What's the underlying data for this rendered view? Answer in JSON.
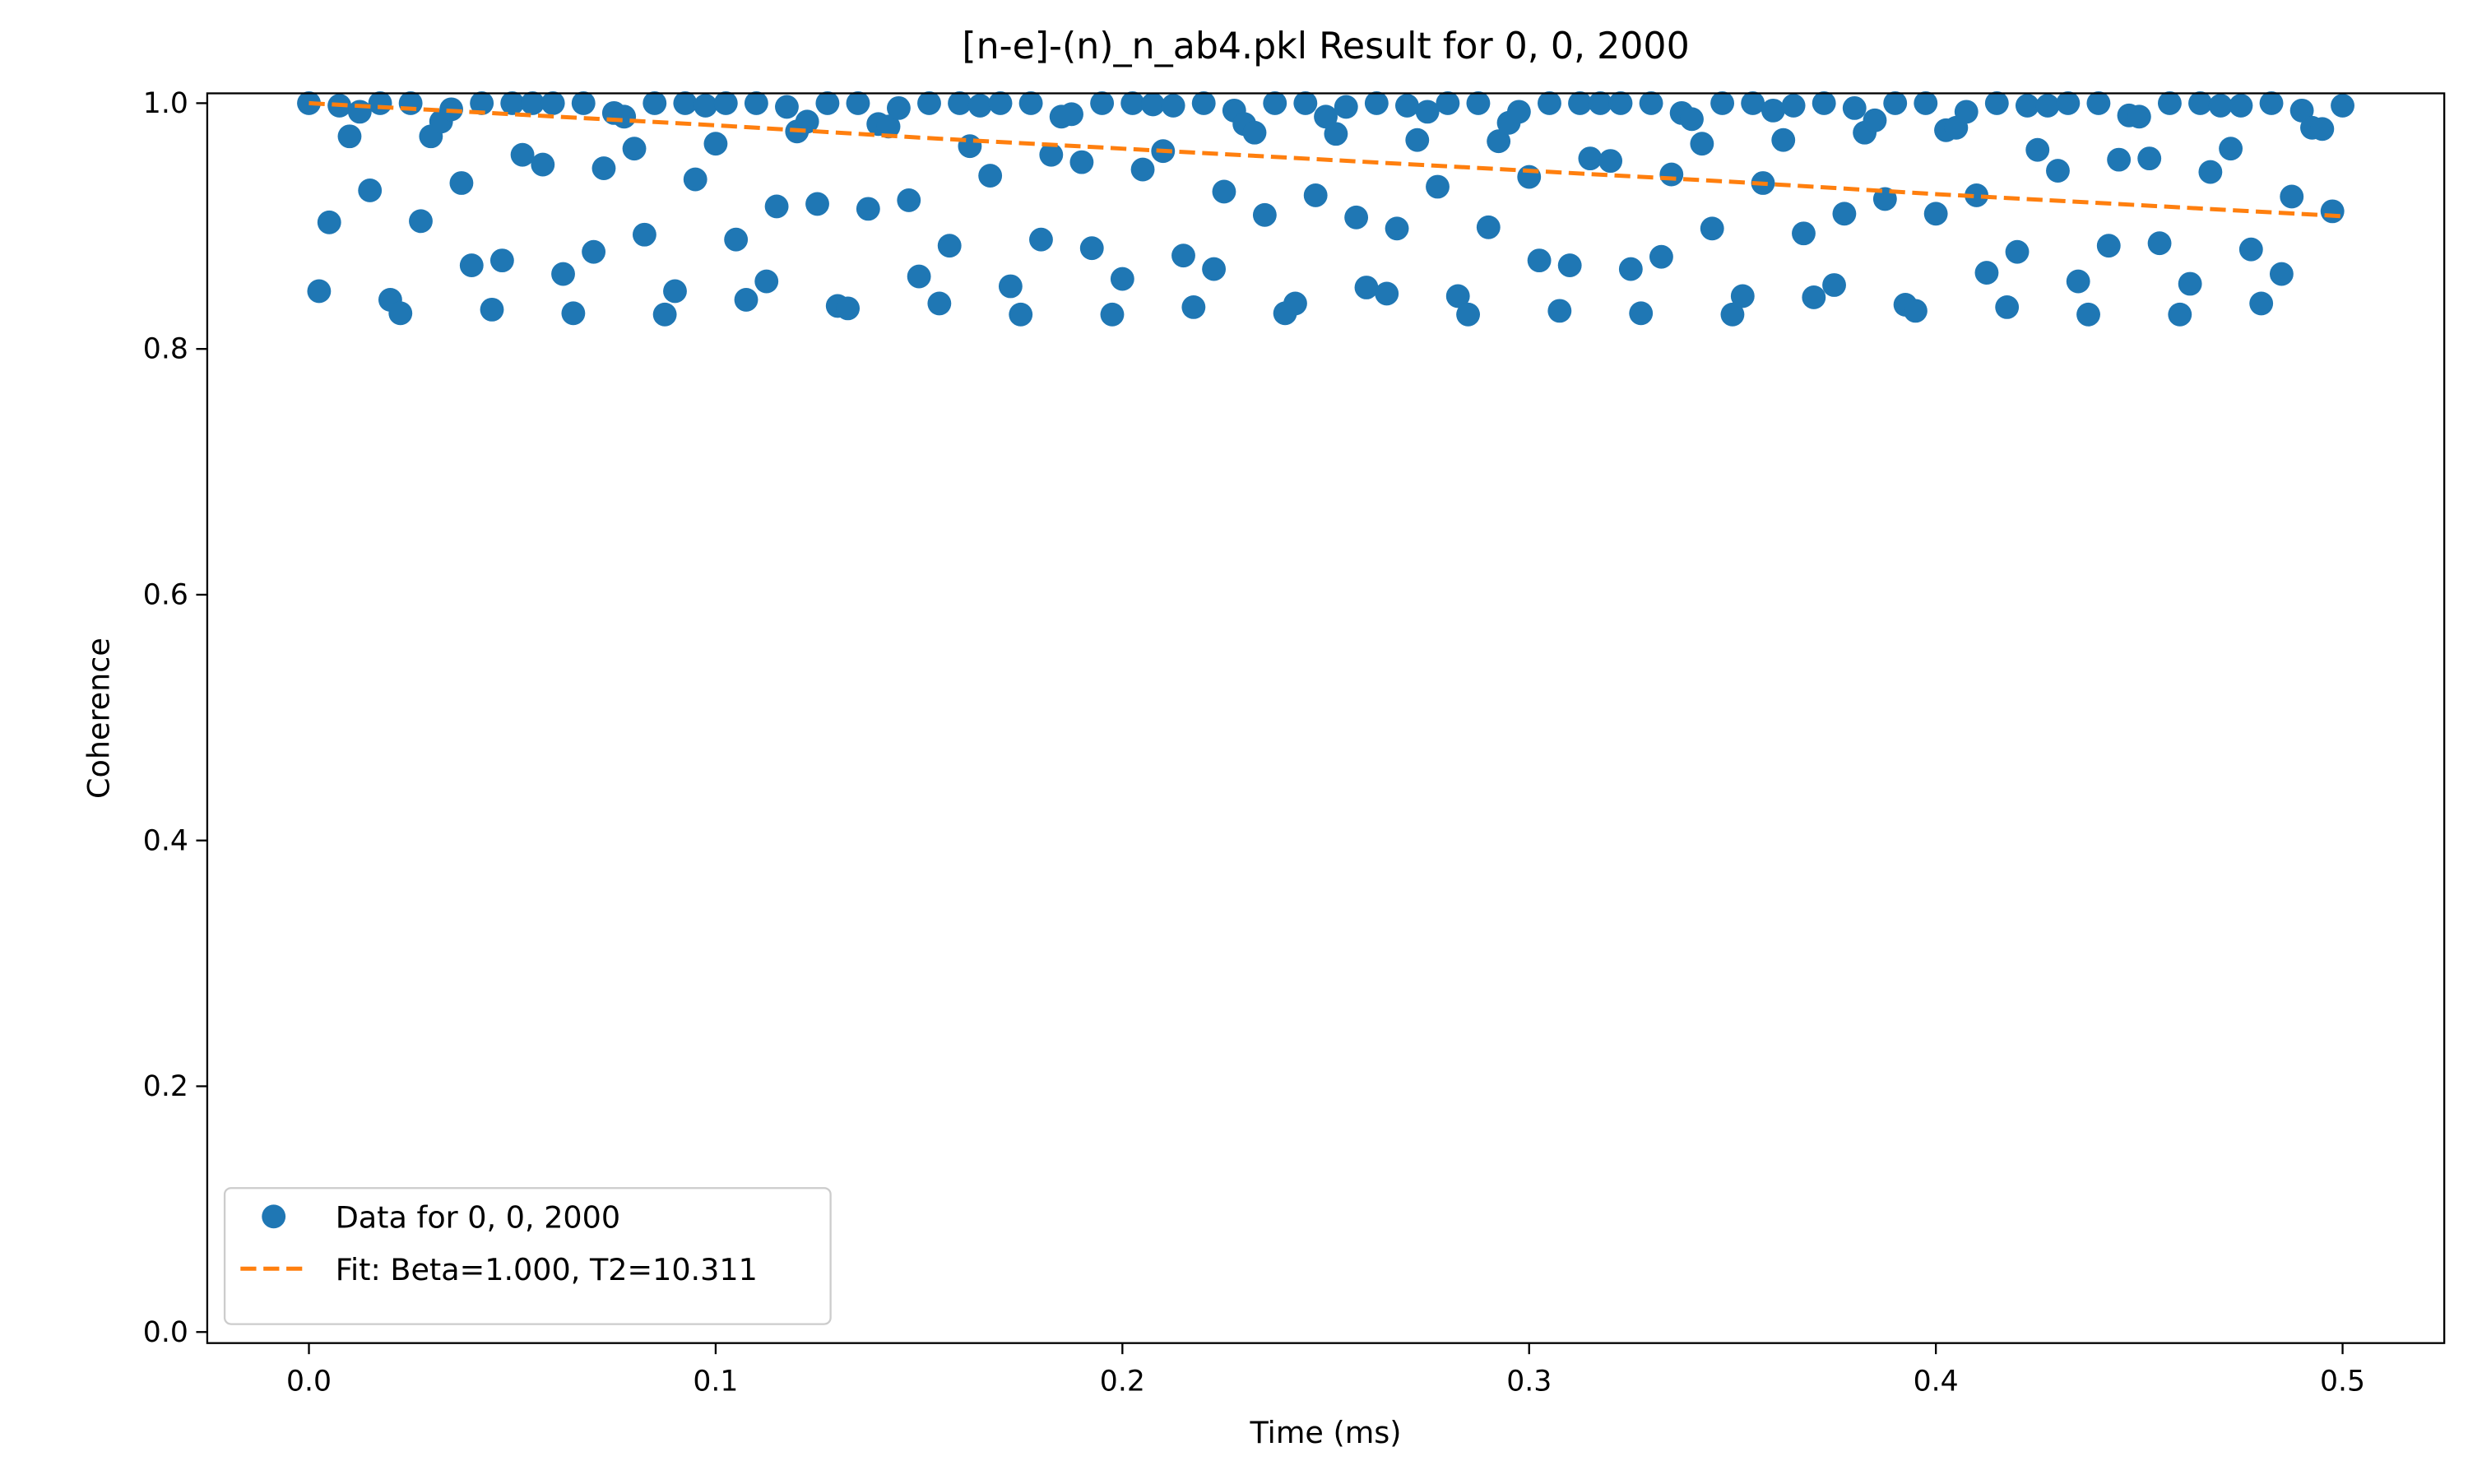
{
  "chart_data": {
    "type": "scatter",
    "title": "[n-e]-(n)_n_ab4.pkl Result for 0, 0, 2000",
    "x_label": "Time (ms)",
    "y_label": "Coherence",
    "xlim": [
      -0.025,
      0.525
    ],
    "ylim": [
      -0.009,
      1.008
    ],
    "xticks": [
      {
        "value": 0,
        "label": "0.0"
      },
      {
        "value": 0.1,
        "label": "0.1"
      },
      {
        "value": 0.2,
        "label": "0.2"
      },
      {
        "value": 0.3,
        "label": "0.3"
      },
      {
        "value": 0.4,
        "label": "0.4"
      },
      {
        "value": 0.5,
        "label": "0.5"
      }
    ],
    "yticks": [
      {
        "value": 0,
        "label": "0.0"
      },
      {
        "value": 0.2,
        "label": "0.2"
      },
      {
        "value": 0.4,
        "label": "0.4"
      },
      {
        "value": 0.6,
        "label": "0.6"
      },
      {
        "value": 0.8,
        "label": "0.8"
      },
      {
        "value": 1,
        "label": "1.0"
      }
    ],
    "grid": false,
    "legend": "lower left",
    "series": [
      {
        "name": "Data for 0, 0, 2000",
        "color": "#1f77b4",
        "style": "markers",
        "x": [
          0,
          0.0025,
          0.005,
          0.0075,
          0.01,
          0.0125,
          0.015,
          0.0175,
          0.02,
          0.0225,
          0.025,
          0.0275,
          0.03,
          0.0325,
          0.035,
          0.0375,
          0.04,
          0.0425,
          0.045,
          0.0475,
          0.05,
          0.0525,
          0.055,
          0.0575,
          0.06,
          0.0625,
          0.065,
          0.0675,
          0.07,
          0.0725,
          0.075,
          0.0775,
          0.08,
          0.0825,
          0.085,
          0.0875,
          0.09,
          0.0925,
          0.095,
          0.0975,
          0.1,
          0.1025,
          0.105,
          0.1075,
          0.11,
          0.1125,
          0.115,
          0.1175,
          0.12,
          0.1225,
          0.125,
          0.1275,
          0.13,
          0.1325,
          0.135,
          0.1375,
          0.14,
          0.1425,
          0.145,
          0.1475,
          0.15,
          0.1525,
          0.155,
          0.1575,
          0.16,
          0.1625,
          0.165,
          0.1675,
          0.17,
          0.1725,
          0.175,
          0.1775,
          0.18,
          0.1825,
          0.185,
          0.1875,
          0.19,
          0.1925,
          0.195,
          0.1975,
          0.2,
          0.2025,
          0.205,
          0.2075,
          0.21,
          0.2125,
          0.215,
          0.2175,
          0.22,
          0.2225,
          0.225,
          0.2275,
          0.23,
          0.2325,
          0.235,
          0.2375,
          0.24,
          0.2425,
          0.245,
          0.2475,
          0.25,
          0.2525,
          0.255,
          0.2575,
          0.26,
          0.2625,
          0.265,
          0.2675,
          0.27,
          0.2725,
          0.275,
          0.2775,
          0.28,
          0.2825,
          0.285,
          0.2875,
          0.29,
          0.2925,
          0.295,
          0.2975,
          0.3,
          0.3025,
          0.305,
          0.3075,
          0.31,
          0.3125,
          0.315,
          0.3175,
          0.32,
          0.3225,
          0.325,
          0.3275,
          0.33,
          0.3325,
          0.335,
          0.3375,
          0.34,
          0.3425,
          0.345,
          0.3475,
          0.35,
          0.3525,
          0.355,
          0.3575,
          0.36,
          0.3625,
          0.365,
          0.3675,
          0.37,
          0.3725,
          0.375,
          0.3775,
          0.38,
          0.3825,
          0.385,
          0.3875,
          0.39,
          0.3925,
          0.395,
          0.3975,
          0.4,
          0.4025,
          0.405,
          0.4075,
          0.41,
          0.4125,
          0.415,
          0.4175,
          0.42,
          0.4225,
          0.425,
          0.4275,
          0.43,
          0.4325,
          0.435,
          0.4375,
          0.44,
          0.4425,
          0.445,
          0.4475,
          0.45,
          0.4525,
          0.455,
          0.4575,
          0.46,
          0.4625,
          0.465,
          0.4675,
          0.47,
          0.4725,
          0.475,
          0.4775,
          0.48,
          0.4825,
          0.485,
          0.4875,
          0.49,
          0.4925,
          0.495,
          0.4975,
          0.5
        ],
        "values": [
          1.0,
          0.847,
          0.903,
          0.998,
          0.973,
          0.993,
          0.929,
          1.0,
          0.84,
          0.829,
          1.0,
          0.904,
          0.973,
          0.985,
          0.995,
          0.935,
          0.868,
          1.0,
          0.832,
          0.872,
          1.0,
          0.958,
          1.0,
          0.95,
          1.0,
          0.861,
          0.829,
          1.0,
          0.879,
          0.947,
          0.992,
          0.989,
          0.963,
          0.893,
          1.0,
          0.828,
          0.847,
          1.0,
          0.938,
          0.998,
          0.967,
          1.0,
          0.889,
          0.84,
          1.0,
          0.855,
          0.916,
          0.997,
          0.977,
          0.985,
          0.918,
          1.0,
          0.835,
          0.833,
          1.0,
          0.914,
          0.983,
          0.981,
          0.996,
          0.921,
          0.859,
          1.0,
          0.837,
          0.884,
          1.0,
          0.965,
          0.998,
          0.941,
          1.0,
          0.851,
          0.828,
          1.0,
          0.889,
          0.958,
          0.989,
          0.991,
          0.952,
          0.882,
          1.0,
          0.828,
          0.857,
          1.0,
          0.946,
          0.999,
          0.961,
          0.998,
          0.876,
          0.834,
          1.0,
          0.865,
          0.928,
          0.994,
          0.983,
          0.976,
          0.909,
          1.0,
          0.829,
          0.837,
          1.0,
          0.925,
          0.989,
          0.975,
          0.997,
          0.907,
          0.85,
          1.0,
          0.845,
          0.898,
          0.998,
          0.97,
          0.993,
          0.932,
          1.0,
          0.843,
          0.828,
          1.0,
          0.899,
          0.969,
          0.984,
          0.993,
          0.94,
          0.872,
          1.0,
          0.831,
          0.868,
          1.0,
          0.955,
          1.0,
          0.953,
          1.0,
          0.865,
          0.829,
          1.0,
          0.875,
          0.942,
          0.992,
          0.987,
          0.967,
          0.898,
          1.0,
          0.828,
          0.843,
          1.0,
          0.935,
          0.994,
          0.97,
          0.998,
          0.894,
          0.842,
          1.0,
          0.852,
          0.91,
          0.996,
          0.976,
          0.986,
          0.922,
          1.0,
          0.836,
          0.831,
          1.0,
          0.91,
          0.978,
          0.98,
          0.993,
          0.925,
          0.862,
          1.0,
          0.834,
          0.879,
          0.998,
          0.962,
          0.998,
          0.945,
          1.0,
          0.855,
          0.828,
          1.0,
          0.884,
          0.954,
          0.99,
          0.989,
          0.955,
          0.886,
          1.0,
          0.828,
          0.853,
          1.0,
          0.944,
          0.998,
          0.963,
          0.998,
          0.881,
          0.837,
          1.0,
          0.861,
          0.924,
          0.994,
          0.98,
          0.979,
          0.912,
          0.998
        ]
      },
      {
        "name": "Fit: Beta=1.000, T2=10.311",
        "color": "#ff7f0e",
        "style": "dashed",
        "x": [
          0,
          0.05,
          0.1,
          0.15,
          0.2,
          0.25,
          0.3,
          0.35,
          0.4,
          0.45,
          0.5
        ],
        "values": [
          1.0,
          0.991,
          0.982,
          0.972,
          0.963,
          0.954,
          0.945,
          0.936,
          0.926,
          0.917,
          0.908
        ]
      }
    ]
  }
}
